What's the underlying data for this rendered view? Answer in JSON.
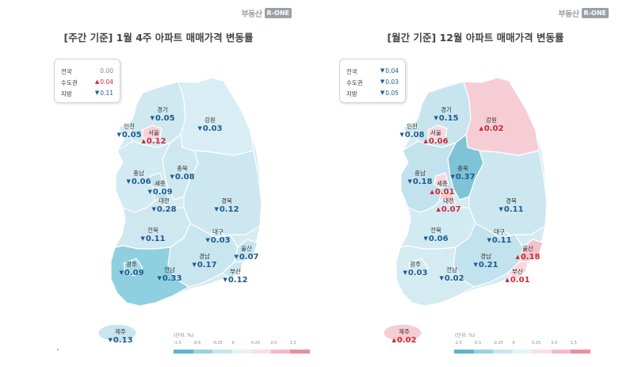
{
  "logo": {
    "text": "부동산",
    "badge": "R-ONE"
  },
  "unit": "(단위: %)",
  "scale_ticks": [
    "-1.5",
    "-0.5",
    "-0.25",
    "0",
    "0.25",
    "0.5",
    "1.5"
  ],
  "scale_colors": [
    "#5cb6cd",
    "#9bd2e0",
    "#c7e6ef",
    "#e4f3f7",
    "#fbe0e5",
    "#f5b9c3",
    "#ee8c9b"
  ],
  "panels": [
    {
      "title": "[주간 기준] 1월 4주 아파트 매매가격 변동률",
      "legend": [
        {
          "label": "전국",
          "dir": "flat",
          "value": "0.00"
        },
        {
          "label": "수도권",
          "dir": "up",
          "value": "0.04"
        },
        {
          "label": "지방",
          "dir": "down",
          "value": "0.11"
        }
      ],
      "regions": [
        {
          "name": "경기",
          "dir": "down",
          "value": "0.05"
        },
        {
          "name": "강원",
          "dir": "down",
          "value": "0.03"
        },
        {
          "name": "인천",
          "dir": "down",
          "value": "0.05"
        },
        {
          "name": "서울",
          "dir": "up",
          "value": "0.12"
        },
        {
          "name": "충북",
          "dir": "down",
          "value": "0.08"
        },
        {
          "name": "충남",
          "dir": "down",
          "value": "0.06"
        },
        {
          "name": "세종",
          "dir": "down",
          "value": "0.09"
        },
        {
          "name": "대전",
          "dir": "down",
          "value": "0.28"
        },
        {
          "name": "경북",
          "dir": "down",
          "value": "0.12"
        },
        {
          "name": "전북",
          "dir": "down",
          "value": "0.11"
        },
        {
          "name": "대구",
          "dir": "down",
          "value": "0.03"
        },
        {
          "name": "울산",
          "dir": "down",
          "value": "0.07"
        },
        {
          "name": "경남",
          "dir": "down",
          "value": "0.17"
        },
        {
          "name": "광주",
          "dir": "down",
          "value": "0.09"
        },
        {
          "name": "전남",
          "dir": "down",
          "value": "0.33"
        },
        {
          "name": "부산",
          "dir": "down",
          "value": "0.12"
        },
        {
          "name": "제주",
          "dir": "down",
          "value": "0.13"
        }
      ]
    },
    {
      "title": "[월간 기준] 12월 아파트 매매가격 변동률",
      "legend": [
        {
          "label": "전국",
          "dir": "down",
          "value": "0.04"
        },
        {
          "label": "수도권",
          "dir": "down",
          "value": "0.03"
        },
        {
          "label": "지방",
          "dir": "down",
          "value": "0.05"
        }
      ],
      "regions": [
        {
          "name": "경기",
          "dir": "down",
          "value": "0.15"
        },
        {
          "name": "강원",
          "dir": "up",
          "value": "0.02"
        },
        {
          "name": "인천",
          "dir": "down",
          "value": "0.08"
        },
        {
          "name": "서울",
          "dir": "up",
          "value": "0.06"
        },
        {
          "name": "충북",
          "dir": "down",
          "value": "0.37"
        },
        {
          "name": "충남",
          "dir": "down",
          "value": "0.18"
        },
        {
          "name": "세종",
          "dir": "up",
          "value": "0.01"
        },
        {
          "name": "대전",
          "dir": "up",
          "value": "0.07"
        },
        {
          "name": "경북",
          "dir": "down",
          "value": "0.11"
        },
        {
          "name": "전북",
          "dir": "down",
          "value": "0.06"
        },
        {
          "name": "대구",
          "dir": "down",
          "value": "0.11"
        },
        {
          "name": "울산",
          "dir": "up",
          "value": "0.18"
        },
        {
          "name": "경남",
          "dir": "down",
          "value": "0.21"
        },
        {
          "name": "광주",
          "dir": "down",
          "value": "0.03"
        },
        {
          "name": "전남",
          "dir": "down",
          "value": "0.02"
        },
        {
          "name": "부산",
          "dir": "up",
          "value": "0.01"
        },
        {
          "name": "제주",
          "dir": "up",
          "value": "0.02"
        }
      ]
    }
  ]
}
